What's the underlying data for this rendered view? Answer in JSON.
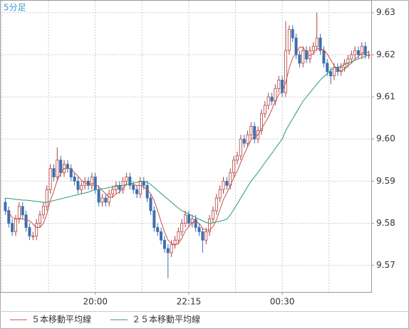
{
  "chart_data": {
    "type": "candlestick",
    "title": "5分足",
    "x": [
      null,
      null,
      null,
      null,
      null,
      null,
      null,
      null,
      null,
      null,
      null,
      null,
      null,
      null,
      null,
      null,
      null,
      null,
      null,
      null,
      null,
      null,
      null,
      null,
      null,
      null,
      "20:00",
      null,
      null,
      null,
      null,
      null,
      null,
      null,
      null,
      null,
      null,
      null,
      null,
      null,
      null,
      null,
      null,
      null,
      null,
      null,
      null,
      null,
      null,
      null,
      null,
      null,
      null,
      "22:15",
      null,
      null,
      null,
      null,
      null,
      null,
      null,
      null,
      null,
      null,
      null,
      null,
      null,
      null,
      null,
      null,
      null,
      null,
      null,
      null,
      null,
      null,
      null,
      null,
      null,
      null,
      "00:30",
      null,
      null,
      null,
      null,
      null,
      null,
      null,
      null,
      null,
      null,
      null,
      null,
      null,
      null,
      null,
      null,
      null,
      null,
      null,
      null,
      null,
      null,
      null,
      null,
      null
    ],
    "open": [
      9.585,
      9.583,
      9.58,
      9.578,
      9.581,
      9.584,
      9.582,
      9.579,
      9.577,
      9.577,
      9.58,
      9.582,
      9.584,
      9.588,
      9.593,
      9.591,
      9.595,
      9.592,
      9.594,
      9.593,
      9.591,
      9.59,
      9.588,
      9.589,
      9.59,
      9.589,
      9.591,
      9.588,
      9.585,
      9.586,
      9.585,
      9.587,
      9.588,
      9.589,
      9.588,
      9.59,
      9.591,
      9.589,
      9.588,
      9.587,
      9.59,
      9.589,
      9.586,
      9.583,
      9.579,
      9.578,
      9.576,
      9.574,
      9.573,
      9.575,
      9.576,
      9.578,
      9.58,
      9.582,
      9.58,
      9.581,
      9.579,
      9.578,
      9.576,
      9.578,
      9.581,
      9.583,
      9.586,
      9.588,
      9.59,
      9.589,
      9.592,
      9.595,
      9.596,
      9.6,
      9.599,
      9.601,
      9.603,
      9.6,
      9.602,
      9.606,
      9.608,
      9.61,
      9.609,
      9.612,
      9.614,
      9.611,
      9.621,
      9.626,
      9.624,
      9.62,
      9.618,
      9.621,
      9.619,
      9.621,
      9.622,
      9.624,
      9.621,
      9.618,
      9.616,
      9.615,
      9.617,
      9.616,
      9.617,
      9.618,
      9.619,
      9.62,
      9.621,
      9.62,
      9.622,
      9.62
    ],
    "high": [
      9.586,
      9.584,
      9.581,
      9.582,
      9.585,
      9.585,
      9.583,
      9.58,
      9.578,
      9.581,
      9.583,
      9.585,
      9.589,
      9.594,
      9.594,
      9.598,
      9.596,
      9.595,
      9.595,
      9.594,
      9.592,
      9.591,
      9.59,
      9.591,
      9.591,
      9.592,
      9.592,
      9.589,
      9.587,
      9.587,
      9.588,
      9.589,
      9.59,
      9.59,
      9.591,
      9.592,
      9.592,
      9.59,
      9.589,
      9.591,
      9.591,
      9.59,
      9.587,
      9.584,
      9.58,
      9.579,
      9.577,
      9.575,
      9.576,
      9.577,
      9.579,
      9.581,
      9.583,
      9.583,
      9.582,
      9.582,
      9.58,
      9.579,
      9.579,
      9.582,
      9.584,
      9.587,
      9.589,
      9.591,
      9.591,
      9.593,
      9.596,
      9.597,
      9.601,
      9.601,
      9.602,
      9.604,
      9.604,
      9.603,
      9.607,
      9.609,
      9.611,
      9.611,
      9.613,
      9.615,
      9.615,
      9.628,
      9.627,
      9.627,
      9.625,
      9.621,
      9.622,
      9.622,
      9.622,
      9.623,
      9.63,
      9.625,
      9.622,
      9.619,
      9.617,
      9.618,
      9.618,
      9.618,
      9.619,
      9.62,
      9.621,
      9.622,
      9.622,
      9.623,
      9.623,
      9.621
    ],
    "low": [
      9.582,
      9.579,
      9.577,
      9.577,
      9.58,
      9.581,
      9.578,
      9.576,
      9.576,
      9.576,
      9.579,
      9.581,
      9.583,
      9.587,
      9.59,
      9.59,
      9.591,
      9.591,
      9.592,
      9.59,
      9.589,
      9.587,
      9.587,
      9.588,
      9.588,
      9.588,
      9.587,
      9.584,
      9.584,
      9.584,
      9.584,
      9.586,
      9.587,
      9.587,
      9.587,
      9.589,
      9.588,
      9.587,
      9.586,
      9.586,
      9.588,
      9.585,
      9.582,
      9.578,
      9.577,
      9.575,
      9.573,
      9.567,
      9.572,
      9.574,
      9.575,
      9.577,
      9.579,
      9.579,
      9.579,
      9.578,
      9.577,
      9.573,
      9.575,
      9.577,
      9.58,
      9.582,
      9.585,
      9.587,
      9.588,
      9.588,
      9.591,
      9.594,
      9.595,
      9.598,
      9.598,
      9.6,
      9.599,
      9.599,
      9.601,
      9.605,
      9.607,
      9.608,
      9.608,
      9.611,
      9.61,
      9.61,
      9.62,
      9.623,
      9.619,
      9.617,
      9.617,
      9.618,
      9.618,
      9.62,
      9.621,
      9.62,
      9.617,
      9.615,
      9.613,
      9.614,
      9.615,
      9.615,
      9.616,
      9.617,
      9.618,
      9.619,
      9.619,
      9.619,
      9.619,
      9.619
    ],
    "close": [
      9.583,
      9.58,
      9.578,
      9.581,
      9.584,
      9.582,
      9.579,
      9.577,
      9.577,
      9.58,
      9.582,
      9.584,
      9.588,
      9.593,
      9.591,
      9.595,
      9.592,
      9.594,
      9.593,
      9.591,
      9.59,
      9.588,
      9.589,
      9.59,
      9.589,
      9.591,
      9.588,
      9.585,
      9.586,
      9.585,
      9.587,
      9.588,
      9.589,
      9.588,
      9.59,
      9.591,
      9.589,
      9.588,
      9.587,
      9.59,
      9.589,
      9.586,
      9.583,
      9.579,
      9.578,
      9.576,
      9.574,
      9.573,
      9.575,
      9.576,
      9.578,
      9.58,
      9.582,
      9.58,
      9.581,
      9.579,
      9.578,
      9.576,
      9.578,
      9.581,
      9.583,
      9.586,
      9.588,
      9.59,
      9.589,
      9.592,
      9.595,
      9.596,
      9.6,
      9.599,
      9.601,
      9.603,
      9.6,
      9.602,
      9.606,
      9.608,
      9.61,
      9.609,
      9.612,
      9.614,
      9.611,
      9.621,
      9.626,
      9.624,
      9.62,
      9.618,
      9.621,
      9.619,
      9.621,
      9.622,
      9.624,
      9.621,
      9.618,
      9.616,
      9.615,
      9.617,
      9.616,
      9.617,
      9.618,
      9.619,
      9.62,
      9.621,
      9.62,
      9.622,
      9.62,
      9.62
    ],
    "up_color": "#b04040",
    "down_color": "#3d6fb0",
    "series": [
      {
        "name": "５本移動平均線",
        "color": "#c8504a",
        "values": [
          9.583,
          9.5826,
          9.5814,
          9.581,
          9.5812,
          9.581,
          9.5808,
          9.5806,
          9.5798,
          9.579,
          9.579,
          9.58,
          9.5822,
          9.5854,
          9.5876,
          9.5902,
          9.5918,
          9.593,
          9.593,
          9.593,
          9.592,
          9.5912,
          9.5902,
          9.5896,
          9.5892,
          9.5894,
          9.5894,
          9.5886,
          9.5878,
          9.587,
          9.5862,
          9.5862,
          9.587,
          9.5874,
          9.5884,
          9.5892,
          9.5894,
          9.5892,
          9.589,
          9.589,
          9.5886,
          9.588,
          9.587,
          9.5854,
          9.583,
          9.5804,
          9.578,
          9.576,
          9.5752,
          9.5748,
          9.5752,
          9.5764,
          9.5782,
          9.5792,
          9.5802,
          9.5804,
          9.58,
          9.5788,
          9.5784,
          9.5784,
          9.5792,
          9.5808,
          9.5832,
          9.5856,
          9.5872,
          9.589,
          9.5908,
          9.5924,
          9.5944,
          9.5964,
          9.5982,
          9.5998,
          9.6006,
          9.601,
          9.6024,
          9.6038,
          9.6052,
          9.607,
          9.609,
          9.6106,
          9.6112,
          9.6134,
          9.6168,
          9.6192,
          9.6204,
          9.6218,
          9.6218,
          9.6204,
          9.6198,
          9.6202,
          9.6214,
          9.6214,
          9.6212,
          9.6202,
          9.6188,
          9.6174,
          9.6164,
          9.6162,
          9.6166,
          9.6174,
          9.618,
          9.619,
          9.6196,
          9.6204,
          9.6206,
          9.6206
        ]
      },
      {
        "name": "２５本移動平均線",
        "color": "#2a9a70",
        "values": [
          9.586,
          9.5859,
          9.5858,
          9.5857,
          9.5856,
          9.5855,
          9.5855,
          9.5854,
          9.5853,
          9.5852,
          9.5851,
          9.585,
          9.585,
          9.5852,
          9.5854,
          9.5856,
          9.5858,
          9.586,
          9.5862,
          9.5864,
          9.5866,
          9.5868,
          9.587,
          9.5872,
          9.5874,
          9.5877,
          9.588,
          9.588,
          9.5882,
          9.5883,
          9.5885,
          9.5886,
          9.5888,
          9.5889,
          9.589,
          9.5892,
          9.5894,
          9.5895,
          9.5897,
          9.5899,
          9.59,
          9.5898,
          9.5892,
          9.5885,
          9.5878,
          9.5871,
          9.5864,
          9.5857,
          9.585,
          9.5843,
          9.5836,
          9.583,
          9.5826,
          9.5822,
          9.5818,
          9.5814,
          9.581,
          9.5806,
          9.5802,
          9.58,
          9.5801,
          9.5803,
          9.5805,
          9.5807,
          9.581,
          9.582,
          9.5833,
          9.5846,
          9.586,
          9.5873,
          9.5887,
          9.59,
          9.591,
          9.5921,
          9.5932,
          9.5944,
          9.5955,
          9.5966,
          9.5978,
          9.5989,
          9.6,
          9.602,
          9.6034,
          9.6048,
          9.6062,
          9.6076,
          9.609,
          9.61,
          9.611,
          9.612,
          9.613,
          9.614,
          9.6148,
          9.6155,
          9.6163,
          9.617,
          9.617,
          9.6173,
          9.6177,
          9.618,
          9.6183,
          9.6187,
          9.619,
          9.6193,
          9.6197,
          9.62
        ]
      }
    ],
    "ylim": [
      9.5637,
      9.633
    ],
    "yticks": [
      9.57,
      9.58,
      9.59,
      {
        "value": 9.6,
        "label": "9.60"
      },
      9.61,
      9.62,
      9.63
    ],
    "grid": true
  }
}
